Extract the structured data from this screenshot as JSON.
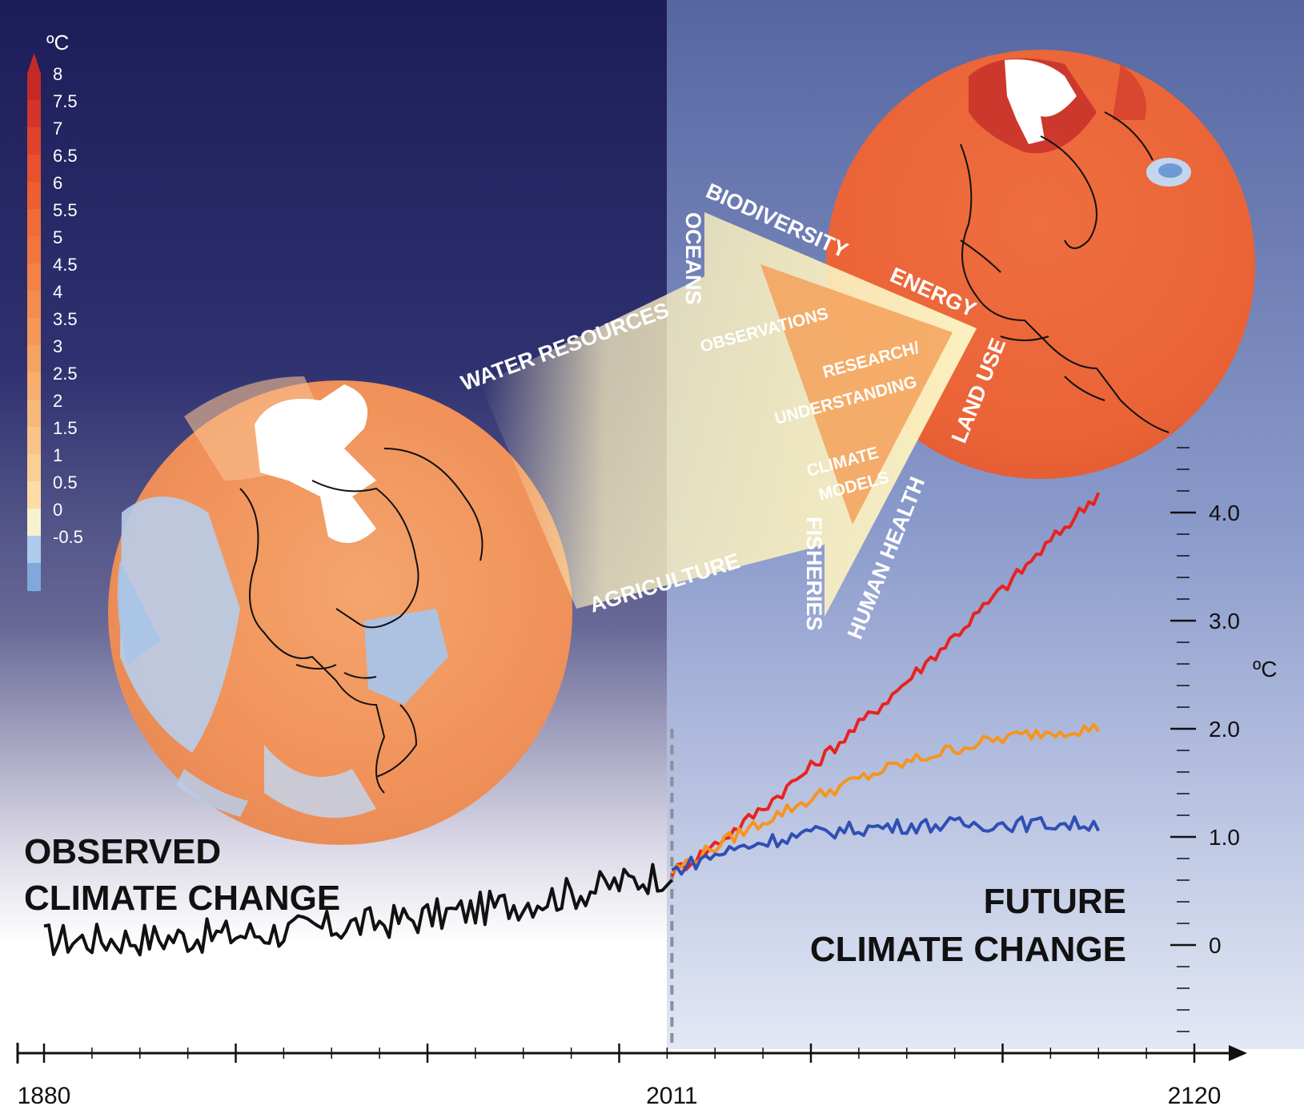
{
  "colorbar": {
    "unit": "ºC",
    "ticks": [
      "8",
      "7.5",
      "7",
      "6.5",
      "6",
      "5.5",
      "5",
      "4.5",
      "4",
      "3.5",
      "3",
      "2.5",
      "2",
      "1.5",
      "1",
      "0.5",
      "0",
      "-0.5"
    ],
    "colors": [
      "#c62a27",
      "#d4352a",
      "#df432b",
      "#e7512e",
      "#ec5e33",
      "#ef6b38",
      "#f1763d",
      "#f28246",
      "#f38d4f",
      "#f49858",
      "#f5a363",
      "#f6ae6f",
      "#f7b97b",
      "#f8c487",
      "#f9cf93",
      "#fbdca5",
      "#f6f2cc",
      "#aecbeb",
      "#7fa8dd"
    ]
  },
  "arrow_labels": {
    "water_resources": "WATER RESOURCES",
    "oceans": "OCEANS",
    "biodiversity": "BIODIVERSITY",
    "energy": "ENERGY",
    "land_use": "LAND USE",
    "human_health": "HUMAN HEALTH",
    "fisheries": "FISHERIES",
    "agriculture": "AGRICULTURE"
  },
  "triangle_labels": {
    "observations": "OBSERVATIONS",
    "research_line1": "RESEARCH/",
    "research_line2": "UNDERSTANDING",
    "climate_models_line1": "CLIMATE",
    "climate_models_line2": "MODELS"
  },
  "titles": {
    "observed_line1": "OBSERVED",
    "observed_line2": "CLIMATE CHANGE",
    "future_line1": "FUTURE",
    "future_line2": "CLIMATE CHANGE"
  },
  "chart_data": {
    "type": "line",
    "xlabel": "",
    "ylabel": "ºC",
    "x_tick_labels": [
      "1880",
      "2011",
      "2120"
    ],
    "y_tick_labels": [
      "0",
      "1.0",
      "2.0",
      "3.0",
      "4.0"
    ],
    "xlim": [
      1880,
      2120
    ],
    "ylim": [
      -0.8,
      4.6
    ],
    "divider_year": 2011,
    "series": [
      {
        "color": "#111111",
        "x": [
          1880,
          2011
        ],
        "y_start": 0.05,
        "y_end": 0.68
      },
      {
        "color": "#e8231e",
        "x": [
          2011,
          2100
        ],
        "y_start": 0.68,
        "y_end": 4.18
      },
      {
        "color": "#f7941d",
        "x": [
          2011,
          2100
        ],
        "y_start": 0.68,
        "y_end": 2.0
      },
      {
        "color": "#2f4fb3",
        "x": [
          2011,
          2100
        ],
        "y_start": 0.68,
        "y_end": 1.12
      }
    ]
  },
  "colors": {
    "observed_top": "#1c1d58",
    "future_top": "#5a6ba4",
    "future_bottom": "#dfe5f3",
    "arrow_fill": "#fbf1c0",
    "triangle_fill": "#f4a15a"
  }
}
